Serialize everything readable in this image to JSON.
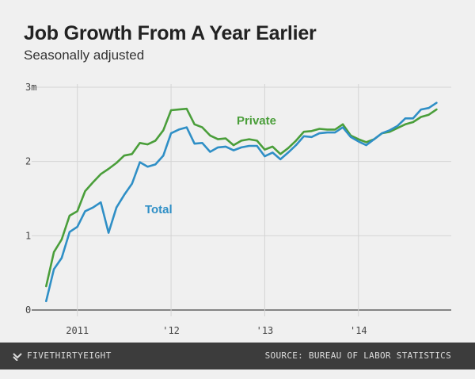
{
  "title": "Job Growth From A Year Earlier",
  "subtitle": "Seasonally adjusted",
  "footer": {
    "brand": "FIVETHIRTYEIGHT",
    "brand_icon": "fivethirtyeight-logo-icon",
    "source": "SOURCE: BUREAU OF LABOR STATISTICS"
  },
  "chart_data": {
    "type": "line",
    "title": "Job Growth From A Year Earlier",
    "subtitle": "Seasonally adjusted",
    "xlabel": "",
    "ylabel": "",
    "grid": true,
    "ylim": [
      0,
      3
    ],
    "xlim": [
      2010.58,
      2014.99
    ],
    "y_ticks": [
      {
        "value": 0,
        "label": "0"
      },
      {
        "value": 1,
        "label": "1"
      },
      {
        "value": 2,
        "label": "2"
      },
      {
        "value": 3,
        "label": "3m"
      }
    ],
    "x_ticks": [
      {
        "value": 2011,
        "label": "2011"
      },
      {
        "value": 2012,
        "label": "'12"
      },
      {
        "value": 2013,
        "label": "'13"
      },
      {
        "value": 2014,
        "label": "'14"
      }
    ],
    "x": [
      2010.667,
      2010.75,
      2010.833,
      2010.917,
      2011.0,
      2011.083,
      2011.167,
      2011.25,
      2011.333,
      2011.417,
      2011.5,
      2011.583,
      2011.667,
      2011.75,
      2011.833,
      2011.917,
      2012.0,
      2012.083,
      2012.167,
      2012.25,
      2012.333,
      2012.417,
      2012.5,
      2012.583,
      2012.667,
      2012.75,
      2012.833,
      2012.917,
      2013.0,
      2013.083,
      2013.167,
      2013.25,
      2013.333,
      2013.417,
      2013.5,
      2013.583,
      2013.667,
      2013.75,
      2013.833,
      2013.917,
      2014.0,
      2014.083,
      2014.167,
      2014.25,
      2014.333,
      2014.417,
      2014.5,
      2014.583,
      2014.667,
      2014.75,
      2014.833
    ],
    "series": [
      {
        "name": "Private",
        "color": "#4a9e3a",
        "values": [
          0.32,
          0.78,
          0.95,
          1.27,
          1.33,
          1.6,
          1.72,
          1.83,
          1.9,
          1.98,
          2.08,
          2.1,
          2.25,
          2.23,
          2.28,
          2.42,
          2.69,
          2.7,
          2.71,
          2.5,
          2.46,
          2.35,
          2.3,
          2.31,
          2.22,
          2.28,
          2.3,
          2.28,
          2.16,
          2.2,
          2.1,
          2.18,
          2.28,
          2.4,
          2.41,
          2.44,
          2.43,
          2.43,
          2.5,
          2.35,
          2.3,
          2.26,
          2.3,
          2.38,
          2.4,
          2.45,
          2.5,
          2.53,
          2.6,
          2.63,
          2.7
        ]
      },
      {
        "name": "Total",
        "color": "#2f8fc6",
        "values": [
          0.12,
          0.55,
          0.7,
          1.05,
          1.12,
          1.33,
          1.38,
          1.45,
          1.04,
          1.38,
          1.55,
          1.7,
          1.99,
          1.93,
          1.96,
          2.08,
          2.38,
          2.43,
          2.46,
          2.24,
          2.25,
          2.13,
          2.19,
          2.2,
          2.15,
          2.19,
          2.21,
          2.21,
          2.07,
          2.12,
          2.03,
          2.12,
          2.22,
          2.34,
          2.33,
          2.38,
          2.39,
          2.39,
          2.46,
          2.33,
          2.27,
          2.22,
          2.3,
          2.38,
          2.42,
          2.48,
          2.58,
          2.58,
          2.7,
          2.72,
          2.79
        ]
      }
    ]
  }
}
